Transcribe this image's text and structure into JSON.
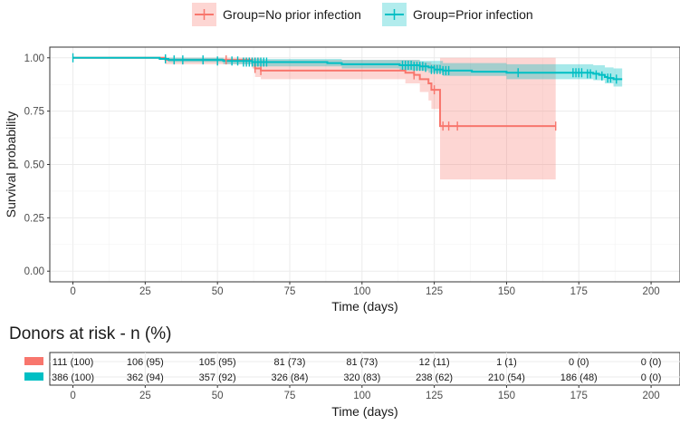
{
  "chart_data": [
    {
      "type": "line",
      "subtype": "kaplan-meier",
      "title": "",
      "xlabel": "Time (days)",
      "ylabel": "Survival probability",
      "xlim": [
        -8,
        210
      ],
      "ylim": [
        -0.05,
        1.05
      ],
      "xticks": [
        0,
        25,
        50,
        75,
        100,
        125,
        150,
        175,
        200
      ],
      "xtick_labels": [
        "0",
        "25",
        "50",
        "75",
        "100",
        "125",
        "150",
        "175",
        "200"
      ],
      "yticks": [
        0,
        0.25,
        0.5,
        0.75,
        1
      ],
      "ytick_labels": [
        "0.00",
        "0.25",
        "0.50",
        "0.75",
        "1.00"
      ],
      "grid": true,
      "legend": {
        "position": "top",
        "entries": [
          "Group=No prior infection",
          "Group=Prior infection"
        ]
      },
      "series": [
        {
          "name": "Group=No prior infection",
          "color": "#F8766D",
          "band_color": "#F8766D",
          "steps": [
            [
              0,
              1.0
            ],
            [
              32,
              0.99
            ],
            [
              62,
              0.98
            ],
            [
              63,
              0.95
            ],
            [
              65,
              0.94
            ],
            [
              115,
              0.93
            ],
            [
              118,
              0.92
            ],
            [
              120,
              0.9
            ],
            [
              123,
              0.88
            ],
            [
              124,
              0.85
            ],
            [
              127,
              0.68
            ],
            [
              167,
              0.68
            ]
          ],
          "ci_upper": [
            [
              0,
              1.0
            ],
            [
              32,
              1.0
            ],
            [
              62,
              1.0
            ],
            [
              65,
              0.99
            ],
            [
              115,
              0.99
            ],
            [
              120,
              0.98
            ],
            [
              124,
              0.97
            ],
            [
              127,
              1.0
            ],
            [
              167,
              1.0
            ]
          ],
          "ci_lower": [
            [
              0,
              1.0
            ],
            [
              32,
              0.97
            ],
            [
              62,
              0.95
            ],
            [
              63,
              0.91
            ],
            [
              65,
              0.9
            ],
            [
              115,
              0.88
            ],
            [
              120,
              0.84
            ],
            [
              123,
              0.8
            ],
            [
              124,
              0.76
            ],
            [
              127,
              0.43
            ],
            [
              167,
              0.43
            ]
          ],
          "censored": [
            [
              53,
              0.99
            ],
            [
              63,
              0.95
            ],
            [
              65,
              0.94
            ],
            [
              118,
              0.92
            ],
            [
              125,
              0.85
            ],
            [
              128,
              0.68
            ],
            [
              130,
              0.68
            ],
            [
              133,
              0.68
            ],
            [
              167,
              0.68
            ]
          ]
        },
        {
          "name": "Group=Prior infection",
          "color": "#00BFC4",
          "band_color": "#00BFC4",
          "steps": [
            [
              0,
              1.0
            ],
            [
              30,
              0.995
            ],
            [
              33,
              0.99
            ],
            [
              52,
              0.985
            ],
            [
              62,
              0.98
            ],
            [
              88,
              0.975
            ],
            [
              93,
              0.97
            ],
            [
              113,
              0.965
            ],
            [
              120,
              0.96
            ],
            [
              123,
              0.955
            ],
            [
              125,
              0.945
            ],
            [
              128,
              0.94
            ],
            [
              138,
              0.935
            ],
            [
              150,
              0.93
            ],
            [
              180,
              0.925
            ],
            [
              182,
              0.92
            ],
            [
              184,
              0.91
            ],
            [
              185,
              0.905
            ],
            [
              187,
              0.9
            ],
            [
              190,
              0.9
            ]
          ],
          "ci_upper": [
            [
              0,
              1.0
            ],
            [
              30,
              1.0
            ],
            [
              52,
              0.995
            ],
            [
              93,
              0.99
            ],
            [
              120,
              0.985
            ],
            [
              128,
              0.975
            ],
            [
              150,
              0.97
            ],
            [
              180,
              0.965
            ],
            [
              184,
              0.955
            ],
            [
              187,
              0.95
            ],
            [
              190,
              0.95
            ]
          ],
          "ci_lower": [
            [
              0,
              1.0
            ],
            [
              30,
              0.99
            ],
            [
              33,
              0.98
            ],
            [
              52,
              0.97
            ],
            [
              62,
              0.96
            ],
            [
              93,
              0.95
            ],
            [
              113,
              0.94
            ],
            [
              123,
              0.93
            ],
            [
              128,
              0.915
            ],
            [
              150,
              0.9
            ],
            [
              180,
              0.895
            ],
            [
              184,
              0.88
            ],
            [
              187,
              0.865
            ],
            [
              190,
              0.865
            ]
          ],
          "censored": [
            [
              0,
              1.0
            ],
            [
              32,
              0.995
            ],
            [
              35,
              0.99
            ],
            [
              38,
              0.99
            ],
            [
              45,
              0.99
            ],
            [
              50,
              0.985
            ],
            [
              55,
              0.985
            ],
            [
              57,
              0.985
            ],
            [
              59,
              0.98
            ],
            [
              60,
              0.98
            ],
            [
              61,
              0.98
            ],
            [
              62,
              0.98
            ],
            [
              63,
              0.98
            ],
            [
              64,
              0.98
            ],
            [
              65,
              0.98
            ],
            [
              66,
              0.98
            ],
            [
              67,
              0.98
            ],
            [
              114,
              0.965
            ],
            [
              115,
              0.965
            ],
            [
              116,
              0.965
            ],
            [
              117,
              0.965
            ],
            [
              118,
              0.96
            ],
            [
              119,
              0.96
            ],
            [
              120,
              0.96
            ],
            [
              121,
              0.96
            ],
            [
              122,
              0.955
            ],
            [
              124,
              0.945
            ],
            [
              125,
              0.945
            ],
            [
              126,
              0.945
            ],
            [
              127,
              0.945
            ],
            [
              128,
              0.94
            ],
            [
              129,
              0.94
            ],
            [
              130,
              0.94
            ],
            [
              154,
              0.93
            ],
            [
              173,
              0.93
            ],
            [
              174,
              0.93
            ],
            [
              175,
              0.93
            ],
            [
              176,
              0.93
            ],
            [
              178,
              0.925
            ],
            [
              179,
              0.925
            ],
            [
              181,
              0.92
            ],
            [
              183,
              0.915
            ],
            [
              185,
              0.905
            ],
            [
              186,
              0.905
            ],
            [
              188,
              0.9
            ]
          ]
        }
      ]
    },
    {
      "type": "table",
      "title": "Donors at risk - n (%)",
      "xlabel": "Time (days)",
      "xlim": [
        -8,
        210
      ],
      "xticks": [
        0,
        25,
        50,
        75,
        100,
        125,
        150,
        175,
        200
      ],
      "xtick_labels": [
        "0",
        "25",
        "50",
        "75",
        "100",
        "125",
        "150",
        "175",
        "200"
      ],
      "rows": [
        {
          "name": "Group=No prior infection",
          "color": "#F8766D",
          "cells": [
            "111 (100)",
            "106 (95)",
            "105 (95)",
            "81 (73)",
            "81 (73)",
            "12 (11)",
            "1 (1)",
            "0 (0)",
            "0 (0)"
          ]
        },
        {
          "name": "Group=Prior infection",
          "color": "#00BFC4",
          "cells": [
            "386 (100)",
            "362 (94)",
            "357 (92)",
            "326 (84)",
            "320 (83)",
            "238 (62)",
            "210 (54)",
            "186 (48)",
            "0 (0)"
          ]
        }
      ]
    }
  ]
}
